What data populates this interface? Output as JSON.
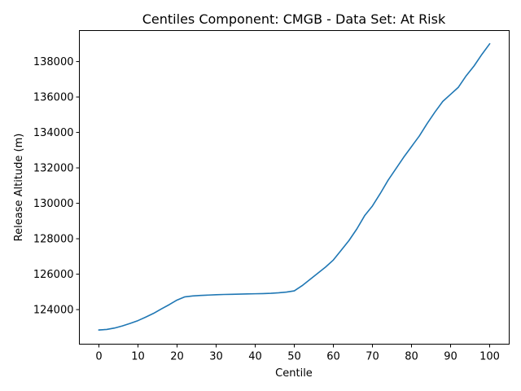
{
  "chart_data": {
    "type": "line",
    "title": "Centiles Component: CMGB - Data Set: At Risk",
    "xlabel": "Centile",
    "ylabel": "Release Altitude (m)",
    "xlim": [
      -5,
      105
    ],
    "ylim": [
      122050,
      139750
    ],
    "grid": false,
    "x_ticks": [
      0,
      10,
      20,
      30,
      40,
      50,
      60,
      70,
      80,
      90,
      100
    ],
    "x_tick_labels": [
      "0",
      "10",
      "20",
      "30",
      "40",
      "50",
      "60",
      "70",
      "80",
      "90",
      "100"
    ],
    "y_ticks": [
      124000,
      126000,
      128000,
      130000,
      132000,
      134000,
      136000,
      138000
    ],
    "y_tick_labels": [
      "124000",
      "126000",
      "128000",
      "130000",
      "132000",
      "134000",
      "136000",
      "138000"
    ],
    "line_color": "#1f77b4",
    "series": [
      {
        "name": "",
        "x": [
          0,
          2,
          4,
          6,
          8,
          10,
          12,
          14,
          16,
          18,
          20,
          22,
          24,
          26,
          28,
          30,
          32,
          34,
          36,
          38,
          40,
          42,
          44,
          46,
          48,
          50,
          52,
          54,
          56,
          58,
          60,
          62,
          64,
          66,
          68,
          70,
          72,
          74,
          76,
          78,
          80,
          82,
          84,
          86,
          88,
          90,
          92,
          94,
          96,
          98,
          100
        ],
        "y": [
          122850,
          122880,
          122960,
          123080,
          123220,
          123380,
          123580,
          123790,
          124040,
          124280,
          124540,
          124720,
          124770,
          124800,
          124820,
          124840,
          124855,
          124865,
          124875,
          124885,
          124895,
          124905,
          124920,
          124950,
          124990,
          125060,
          125350,
          125700,
          126050,
          126400,
          126800,
          127350,
          127900,
          128550,
          129300,
          129850,
          130550,
          131300,
          131950,
          132600,
          133200,
          133800,
          134500,
          135150,
          135750,
          136150,
          136550,
          137200,
          137750,
          138400,
          139000
        ]
      }
    ]
  }
}
